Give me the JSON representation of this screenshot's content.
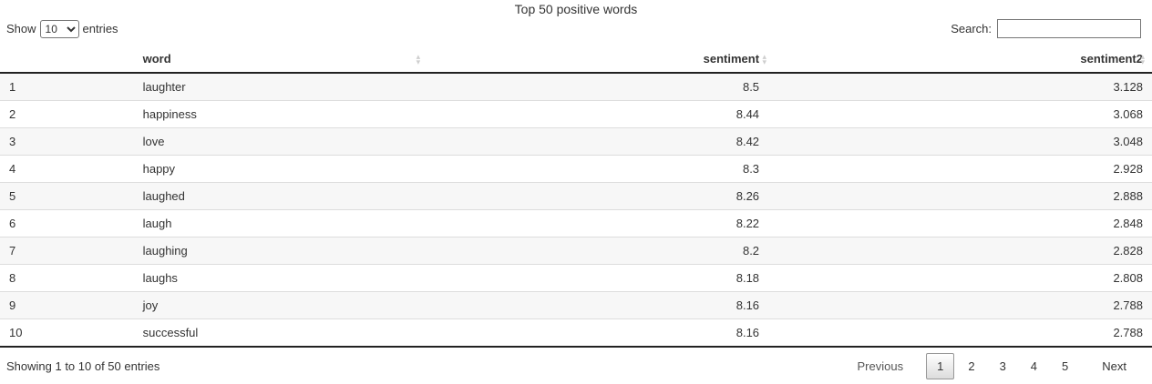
{
  "title": "Top 50 positive words",
  "controls": {
    "show_label": "Show",
    "entries_label": "entries",
    "page_length": "10",
    "search_label": "Search:",
    "search_value": "",
    "search_placeholder": ""
  },
  "icons": {
    "sort_asc": "▴",
    "sort_desc": "▾"
  },
  "table": {
    "columns": [
      {
        "label": "",
        "sortable": false,
        "align": "left"
      },
      {
        "label": "word",
        "sortable": true,
        "align": "left"
      },
      {
        "label": "sentiment",
        "sortable": true,
        "align": "right"
      },
      {
        "label": "sentiment2",
        "sortable": true,
        "align": "right"
      }
    ],
    "rows": [
      {
        "index": "1",
        "word": "laughter",
        "sentiment": "8.5",
        "sentiment2": "3.128"
      },
      {
        "index": "2",
        "word": "happiness",
        "sentiment": "8.44",
        "sentiment2": "3.068"
      },
      {
        "index": "3",
        "word": "love",
        "sentiment": "8.42",
        "sentiment2": "3.048"
      },
      {
        "index": "4",
        "word": "happy",
        "sentiment": "8.3",
        "sentiment2": "2.928"
      },
      {
        "index": "5",
        "word": "laughed",
        "sentiment": "8.26",
        "sentiment2": "2.888"
      },
      {
        "index": "6",
        "word": "laugh",
        "sentiment": "8.22",
        "sentiment2": "2.848"
      },
      {
        "index": "7",
        "word": "laughing",
        "sentiment": "8.2",
        "sentiment2": "2.828"
      },
      {
        "index": "8",
        "word": "laughs",
        "sentiment": "8.18",
        "sentiment2": "2.808"
      },
      {
        "index": "9",
        "word": "joy",
        "sentiment": "8.16",
        "sentiment2": "2.788"
      },
      {
        "index": "10",
        "word": "successful",
        "sentiment": "8.16",
        "sentiment2": "2.788"
      }
    ]
  },
  "footer": {
    "info": "Showing 1 to 10 of 50 entries",
    "pagination": {
      "previous_label": "Previous",
      "pages": [
        "1",
        "2",
        "3",
        "4",
        "5"
      ],
      "active_page": "1",
      "next_label": "Next"
    }
  },
  "colors": {
    "text": "#333333",
    "stripe_row": "#f7f7f7",
    "row_divider": "#dddddd",
    "header_border": "#222222",
    "sort_icon": "#cfcfcf",
    "active_page_border": "#979797",
    "active_page_gradient_top": "#ffffff",
    "active_page_gradient_bottom": "#dcdcdc",
    "input_border": "#767676"
  }
}
